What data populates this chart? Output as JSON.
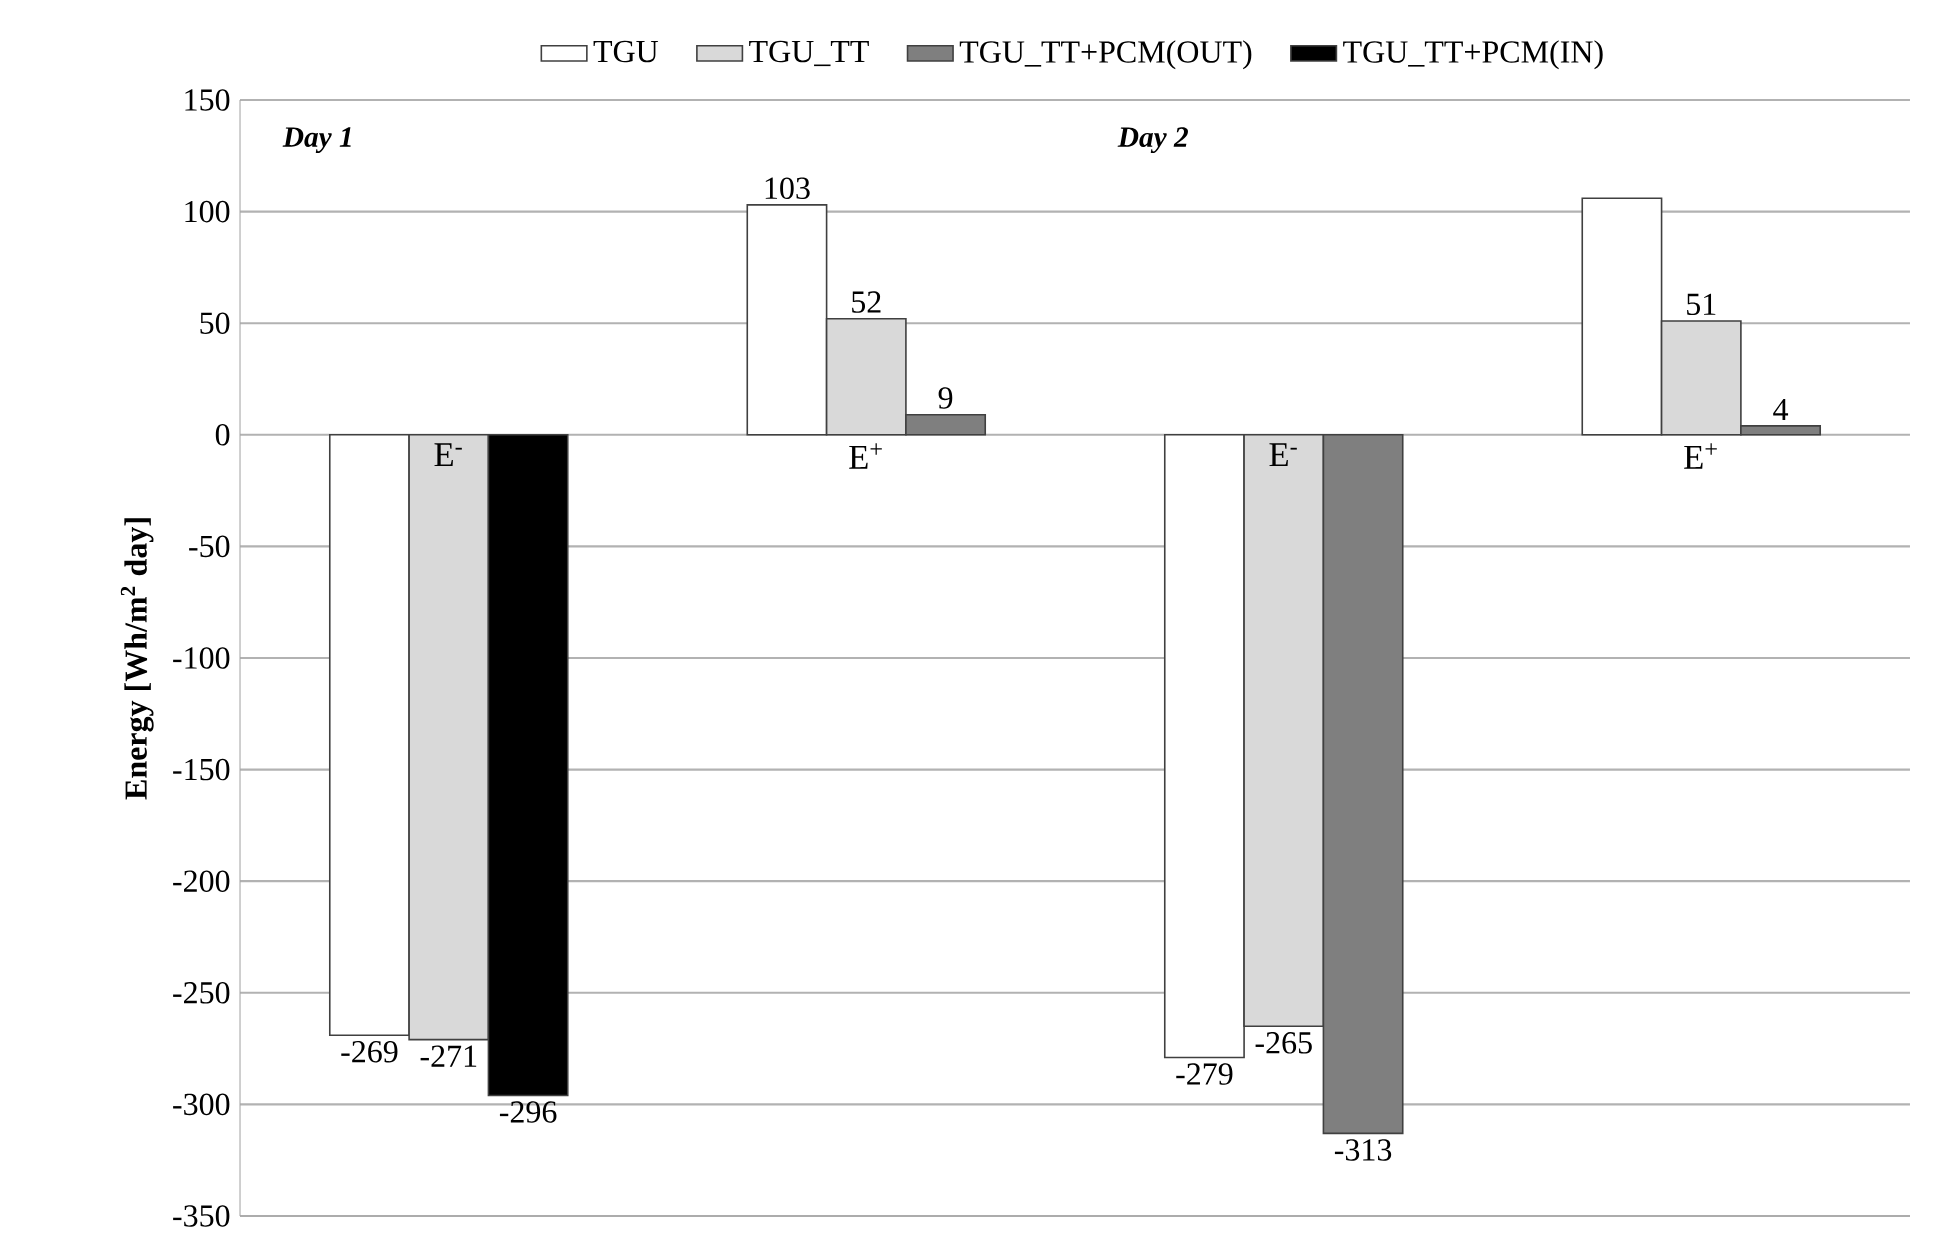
{
  "chart_data": {
    "type": "bar",
    "ylabel": "Energy [Wh/m$^{2}$ day]",
    "categories": [
      "E$^{-}$",
      "E$^{+}$",
      "E$^{-}$",
      "E$^{+}$"
    ],
    "series": [
      {
        "name": "TGU",
        "color": "#ffffff",
        "values": [
          -269,
          103,
          -279,
          106
        ],
        "value_labels": [
          "-269",
          "103",
          "-279",
          null
        ]
      },
      {
        "name": "TGU_TT",
        "color": "#d9d9d9",
        "values": [
          -271,
          52,
          -265,
          51
        ],
        "value_labels": [
          "-271",
          "52",
          "-265",
          "51"
        ]
      },
      {
        "name": "TGU_TT+PCM(OUT)",
        "color": "#7f7f7f",
        "values": [
          null,
          9,
          -313,
          4
        ],
        "value_labels": [
          null,
          "9",
          "-313",
          "4"
        ]
      },
      {
        "name": "TGU_TT+PCM(IN)",
        "color": "#000000",
        "values": [
          -296,
          null,
          null,
          null
        ],
        "value_labels": [
          "-296",
          null,
          null,
          null
        ]
      }
    ],
    "annotations": [
      "Day 1",
      "Day 2"
    ],
    "ylim": [
      -350,
      150
    ],
    "yticks": [
      -350,
      -300,
      -250,
      -200,
      -150,
      -100,
      -50,
      0,
      50,
      100,
      150
    ],
    "grid": "y",
    "legend": "top"
  }
}
